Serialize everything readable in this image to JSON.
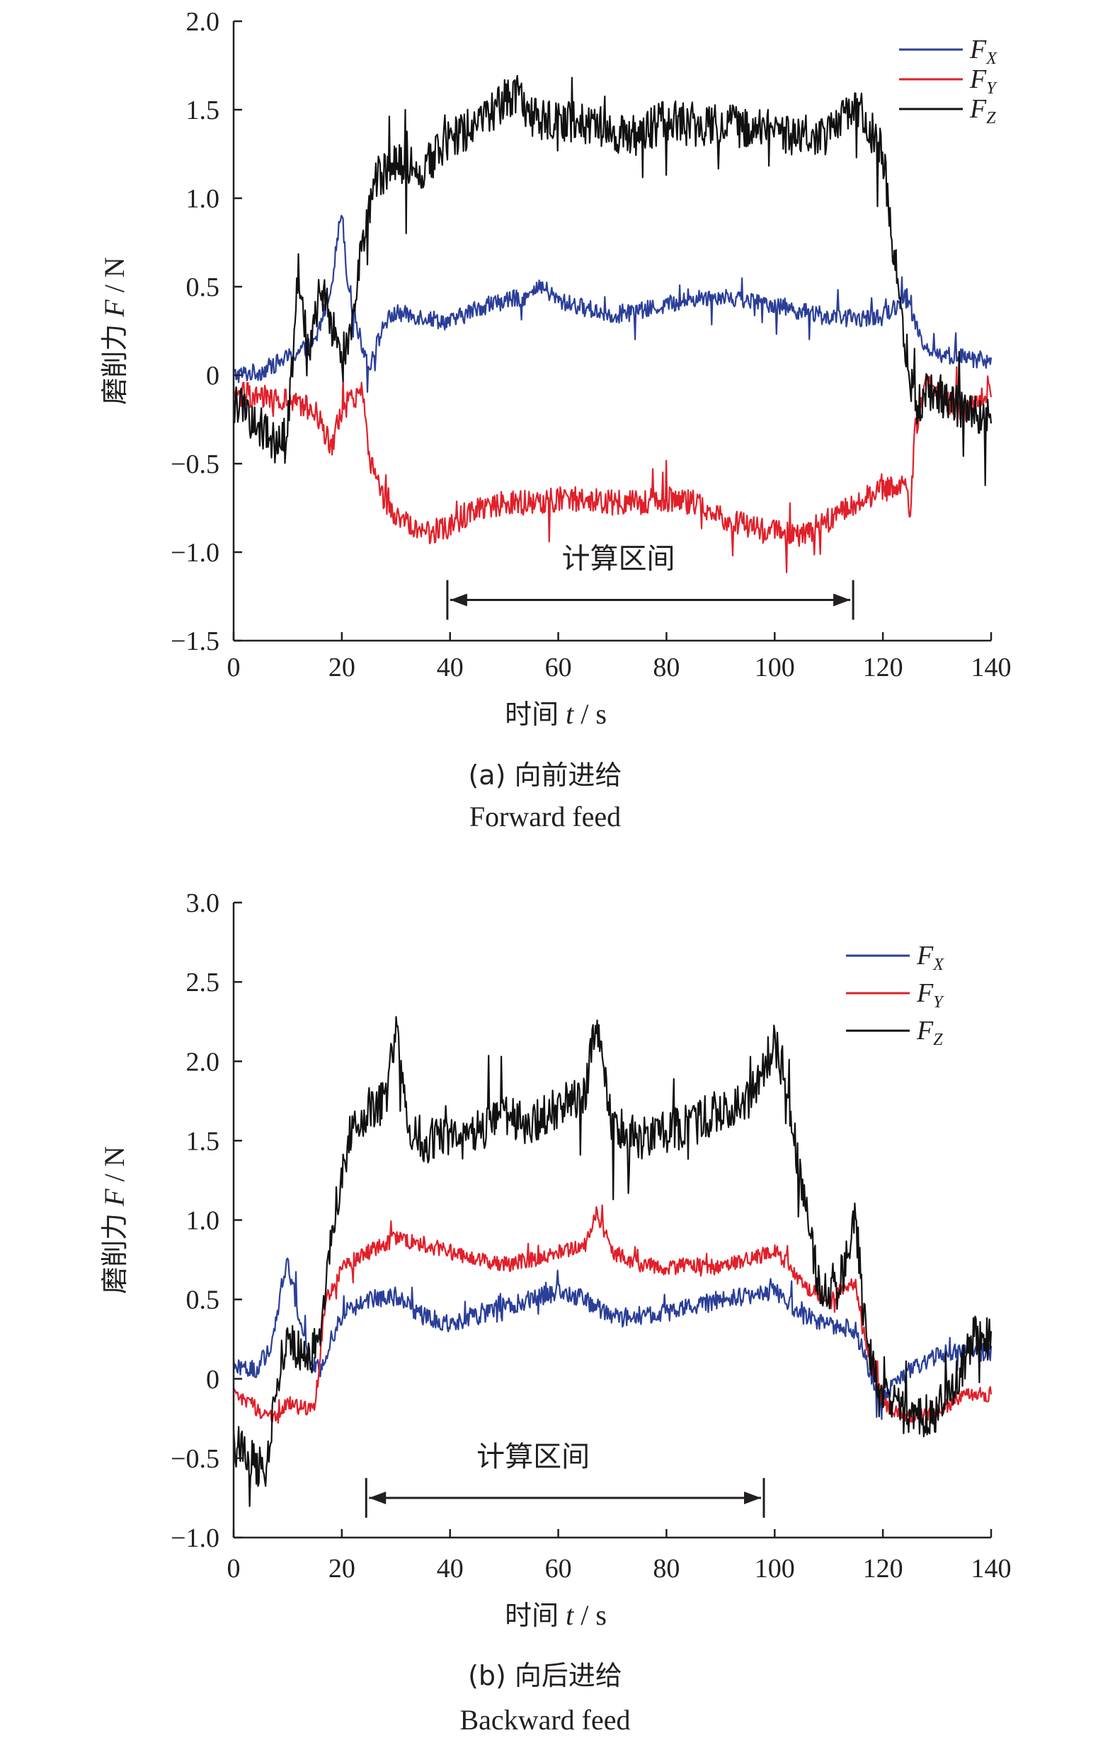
{
  "colors": {
    "FX": "#2b3f98",
    "FY": "#e0202a",
    "FZ": "#111111",
    "axis": "#231f20"
  },
  "chart_data": [
    {
      "type": "line",
      "caption_zh": "(a) 向前进给",
      "caption_en": "Forward feed",
      "xlabel_zh": "时间",
      "xlabel_var": "t",
      "xlabel_unit": " / s",
      "ylabel_zh": "磨削力",
      "ylabel_var": "F",
      "ylabel_unit": " / N",
      "xlim": [
        0,
        140
      ],
      "ylim": [
        -1.5,
        2.0
      ],
      "xticks": [
        "0",
        "20",
        "40",
        "60",
        "80",
        "100",
        "120",
        "140"
      ],
      "yticks": [
        "2.0",
        "1.5",
        "1.0",
        "0.5",
        "0",
        "−0.5",
        "−1.0",
        "−1.5"
      ],
      "legend_position": "top-right",
      "annotation": {
        "text": "计算区间",
        "x_start": 39.5,
        "x_end": 114.5,
        "y": -1.27
      },
      "series": [
        {
          "name": "F",
          "sub": "X",
          "color": "#2b3f98",
          "x": [
            0,
            5,
            10,
            15,
            18,
            20,
            21,
            23,
            25,
            28,
            30,
            35,
            40,
            45,
            50,
            55,
            57,
            60,
            65,
            70,
            75,
            80,
            85,
            90,
            95,
            100,
            105,
            110,
            115,
            120,
            122,
            124,
            126,
            128,
            130,
            135,
            140
          ],
          "y": [
            0.0,
            0.02,
            0.1,
            0.18,
            0.5,
            0.95,
            0.55,
            0.25,
            0.05,
            0.3,
            0.35,
            0.33,
            0.3,
            0.38,
            0.42,
            0.45,
            0.5,
            0.42,
            0.38,
            0.34,
            0.36,
            0.4,
            0.43,
            0.45,
            0.42,
            0.4,
            0.36,
            0.33,
            0.32,
            0.33,
            0.38,
            0.45,
            0.3,
            0.15,
            0.12,
            0.1,
            0.08
          ],
          "noise": 0.05
        },
        {
          "name": "F",
          "sub": "Y",
          "color": "#e0202a",
          "x": [
            0,
            5,
            10,
            15,
            18,
            20,
            22,
            24,
            25,
            27,
            30,
            35,
            40,
            45,
            50,
            55,
            60,
            65,
            70,
            75,
            80,
            85,
            90,
            95,
            100,
            105,
            110,
            115,
            120,
            124,
            125,
            126,
            128,
            130,
            135,
            140
          ],
          "y": [
            -0.1,
            -0.12,
            -0.15,
            -0.2,
            -0.4,
            -0.2,
            -0.12,
            -0.1,
            -0.45,
            -0.65,
            -0.8,
            -0.9,
            -0.85,
            -0.75,
            -0.72,
            -0.72,
            -0.7,
            -0.7,
            -0.72,
            -0.72,
            -0.7,
            -0.72,
            -0.8,
            -0.85,
            -0.88,
            -0.9,
            -0.82,
            -0.72,
            -0.65,
            -0.6,
            -0.8,
            -0.3,
            -0.05,
            -0.1,
            -0.2,
            -0.1
          ],
          "noise": 0.07
        },
        {
          "name": "F",
          "sub": "Z",
          "color": "#111111",
          "x": [
            0,
            5,
            8,
            10,
            12,
            14,
            16,
            18,
            20,
            22,
            24,
            26,
            30,
            35,
            40,
            45,
            50,
            52,
            55,
            60,
            65,
            70,
            75,
            80,
            85,
            90,
            95,
            100,
            105,
            110,
            112,
            115,
            120,
            122,
            124,
            126,
            128,
            130,
            135,
            140
          ],
          "y": [
            -0.15,
            -0.3,
            -0.4,
            -0.3,
            0.6,
            0.1,
            0.5,
            0.3,
            0.05,
            0.3,
            0.8,
            1.1,
            1.2,
            1.15,
            1.35,
            1.4,
            1.55,
            1.6,
            1.45,
            1.45,
            1.42,
            1.38,
            1.35,
            1.45,
            1.4,
            1.42,
            1.4,
            1.38,
            1.35,
            1.35,
            1.45,
            1.55,
            1.25,
            0.7,
            0.2,
            -0.2,
            -0.1,
            -0.1,
            -0.2,
            -0.25
          ],
          "noise": 0.12
        }
      ]
    },
    {
      "type": "line",
      "caption_zh": "(b) 向后进给",
      "caption_en": "Backward feed",
      "xlabel_zh": "时间",
      "xlabel_var": "t",
      "xlabel_unit": " / s",
      "ylabel_zh": "磨削力",
      "ylabel_var": "F",
      "ylabel_unit": " / N",
      "xlim": [
        0,
        140
      ],
      "ylim": [
        -1.0,
        3.0
      ],
      "xticks": [
        "0",
        "20",
        "40",
        "60",
        "80",
        "100",
        "120",
        "140"
      ],
      "yticks": [
        "3.0",
        "2.5",
        "2.0",
        "1.5",
        "1.0",
        "0.5",
        "0",
        "−0.5",
        "−1.0"
      ],
      "legend_position": "top-right",
      "annotation": {
        "text": "计算区间",
        "x_start": 24.5,
        "x_end": 98,
        "y": -0.75
      },
      "series": [
        {
          "name": "F",
          "sub": "X",
          "color": "#2b3f98",
          "x": [
            0,
            4,
            7,
            9,
            10,
            12,
            14,
            16,
            18,
            20,
            25,
            30,
            35,
            40,
            45,
            50,
            55,
            60,
            65,
            70,
            75,
            80,
            85,
            90,
            95,
            100,
            105,
            110,
            115,
            118,
            120,
            125,
            130,
            135,
            140
          ],
          "y": [
            0.1,
            0.05,
            0.2,
            0.6,
            0.75,
            0.4,
            0.1,
            0.05,
            0.25,
            0.4,
            0.5,
            0.52,
            0.4,
            0.35,
            0.4,
            0.45,
            0.5,
            0.55,
            0.5,
            0.38,
            0.4,
            0.42,
            0.45,
            0.5,
            0.52,
            0.55,
            0.4,
            0.35,
            0.3,
            0.0,
            -0.1,
            0.05,
            0.15,
            0.2,
            0.15
          ],
          "noise": 0.06
        },
        {
          "name": "F",
          "sub": "Y",
          "color": "#e0202a",
          "x": [
            0,
            5,
            8,
            10,
            15,
            17,
            20,
            25,
            30,
            35,
            40,
            45,
            50,
            55,
            60,
            65,
            67,
            70,
            75,
            80,
            85,
            90,
            95,
            100,
            102,
            105,
            110,
            112,
            115,
            117,
            120,
            125,
            130,
            135,
            140
          ],
          "y": [
            -0.1,
            -0.2,
            -0.25,
            -0.15,
            -0.2,
            0.5,
            0.7,
            0.8,
            0.88,
            0.85,
            0.8,
            0.75,
            0.72,
            0.75,
            0.8,
            0.85,
            1.05,
            0.8,
            0.72,
            0.7,
            0.72,
            0.7,
            0.75,
            0.8,
            0.75,
            0.6,
            0.5,
            0.55,
            0.6,
            0.2,
            -0.15,
            -0.25,
            -0.2,
            -0.1,
            -0.1
          ],
          "noise": 0.05
        },
        {
          "name": "F",
          "sub": "Z",
          "color": "#111111",
          "x": [
            0,
            3,
            6,
            8,
            10,
            14,
            16,
            18,
            20,
            22,
            25,
            28,
            30,
            32,
            35,
            40,
            45,
            50,
            55,
            60,
            65,
            67,
            70,
            75,
            80,
            85,
            90,
            95,
            100,
            102,
            105,
            108,
            110,
            113,
            115,
            117,
            120,
            125,
            130,
            135,
            137,
            140
          ],
          "y": [
            -0.4,
            -0.5,
            -0.6,
            0.0,
            0.25,
            0.1,
            0.3,
            0.9,
            1.3,
            1.6,
            1.7,
            1.75,
            2.2,
            1.6,
            1.5,
            1.5,
            1.55,
            1.65,
            1.6,
            1.7,
            1.8,
            2.3,
            1.6,
            1.5,
            1.55,
            1.6,
            1.7,
            1.75,
            2.1,
            1.9,
            1.2,
            0.6,
            0.55,
            0.7,
            1.0,
            0.2,
            -0.1,
            -0.25,
            -0.2,
            0.1,
            0.3,
            0.25
          ],
          "noise": 0.14
        }
      ]
    }
  ]
}
